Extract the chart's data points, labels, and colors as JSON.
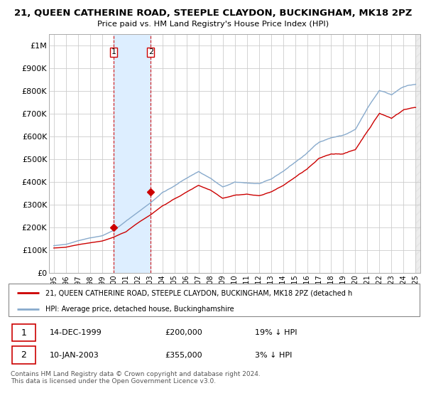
{
  "title": "21, QUEEN CATHERINE ROAD, STEEPLE CLAYDON, BUCKINGHAM, MK18 2PZ",
  "subtitle": "Price paid vs. HM Land Registry's House Price Index (HPI)",
  "ylim": [
    0,
    1050000
  ],
  "yticks": [
    0,
    100000,
    200000,
    300000,
    400000,
    500000,
    600000,
    700000,
    800000,
    900000,
    1000000
  ],
  "ytick_labels": [
    "£0",
    "£100K",
    "£200K",
    "£300K",
    "£400K",
    "£500K",
    "£600K",
    "£700K",
    "£800K",
    "£900K",
    "£1M"
  ],
  "sale1_x": 1999.958,
  "sale1_price": 200000,
  "sale1_date": "14-DEC-1999",
  "sale1_pct": "19% ↓ HPI",
  "sale2_x": 2003.03,
  "sale2_price": 355000,
  "sale2_date": "10-JAN-2003",
  "sale2_pct": "3% ↓ HPI",
  "line_color_red": "#cc0000",
  "line_color_blue": "#88aacc",
  "shade_color": "#ddeeff",
  "grid_color": "#cccccc",
  "legend_line1": "21, QUEEN CATHERINE ROAD, STEEPLE CLAYDON, BUCKINGHAM, MK18 2PZ (detached h",
  "legend_line2": "HPI: Average price, detached house, Buckinghamshire",
  "footer": "Contains HM Land Registry data © Crown copyright and database right 2024.\nThis data is licensed under the Open Government Licence v3.0.",
  "xlim_left": 1994.6,
  "xlim_right": 2025.4
}
